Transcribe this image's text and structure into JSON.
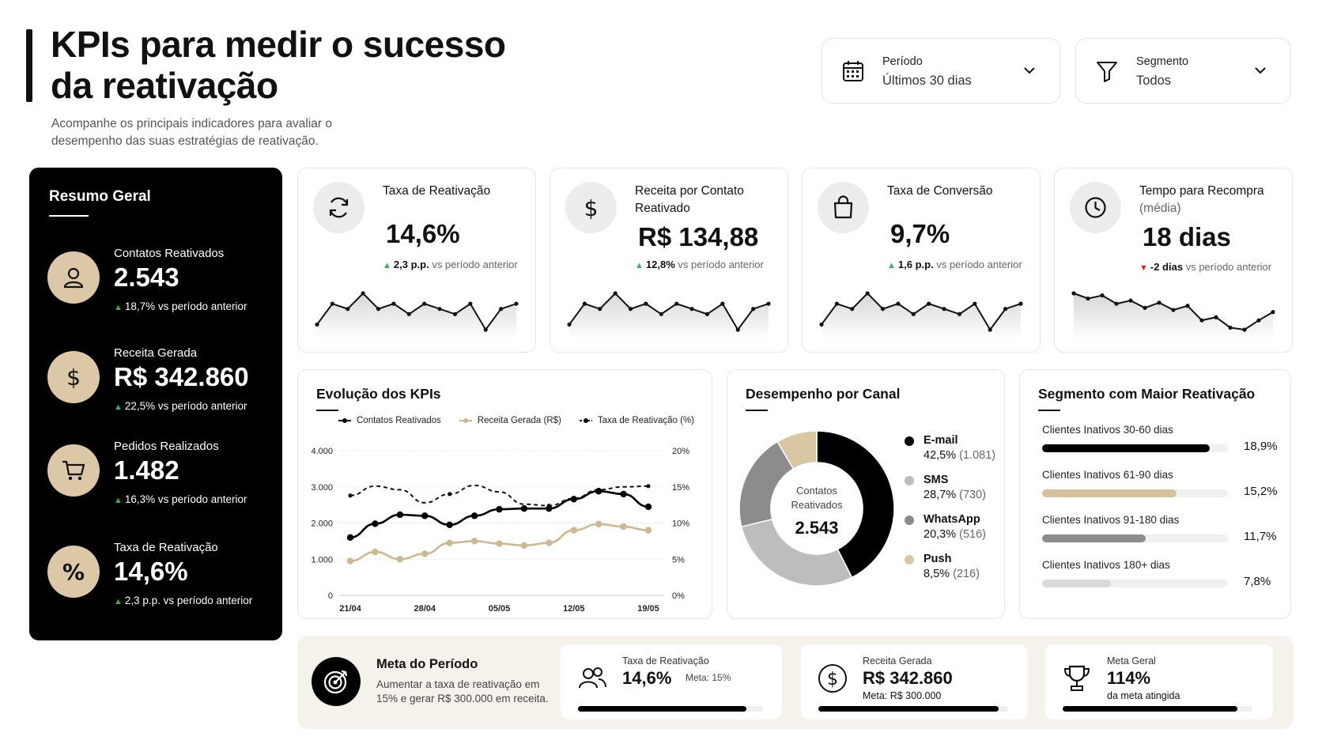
{
  "header": {
    "title": "KPIs para medir o sucesso da reativação",
    "subtitle": "Acompanhe os principais indicadores para avaliar o desempenho das suas estratégias de reativação."
  },
  "filters": {
    "period": {
      "label": "Período",
      "value": "Últimos 30 dias",
      "icon": "calendar-icon"
    },
    "segment": {
      "label": "Segmento",
      "value": "Todos",
      "icon": "filter-icon"
    }
  },
  "summary": {
    "title": "Resumo Geral",
    "items": [
      {
        "label": "Contatos Reativados",
        "value": "2.543",
        "delta": "18,7% vs período anterior",
        "icon": "user-icon"
      },
      {
        "label": "Receita Gerada",
        "value": "R$ 342.860",
        "delta": "22,5% vs período anterior",
        "icon": "dollar-icon"
      },
      {
        "label": "Pedidos Realizados",
        "value": "1.482",
        "delta": "16,3% vs período anterior",
        "icon": "cart-icon"
      },
      {
        "label": "Taxa de Reativação",
        "value": "14,6%",
        "delta": "2,3 p.p. vs período anterior",
        "icon": "percent-icon"
      }
    ]
  },
  "kpis": [
    {
      "title": "Taxa de Reativação",
      "subtitle": "",
      "value": "14,6%",
      "delta_value": "2,3 p.p.",
      "delta_text": "vs período anterior",
      "trend": "up",
      "icon": "refresh-icon",
      "spark": [
        2,
        6,
        5,
        8,
        5,
        6,
        4,
        6,
        5,
        4,
        6,
        1,
        5,
        6
      ]
    },
    {
      "title": "Receita por Contato Reativado",
      "subtitle": "",
      "value": "R$ 134,88",
      "delta_value": "12,8%",
      "delta_text": "vs período anterior",
      "trend": "up",
      "icon": "dollar-icon",
      "spark": [
        2,
        6,
        5,
        8,
        5,
        6,
        4,
        6,
        5,
        4,
        6,
        1,
        5,
        6
      ]
    },
    {
      "title": "Taxa de Conversão",
      "subtitle": "",
      "value": "9,7%",
      "delta_value": "1,6 p.p.",
      "delta_text": "vs período anterior",
      "trend": "up",
      "icon": "bag-icon",
      "spark": [
        2,
        6,
        5,
        8,
        5,
        6,
        4,
        6,
        5,
        4,
        6,
        1,
        5,
        6
      ]
    },
    {
      "title": "Tempo para Recompra",
      "subtitle": "(média)",
      "value": "18 dias",
      "delta_value": "-2 dias",
      "delta_text": "vs período anterior",
      "trend": "down",
      "icon": "clock-icon",
      "spark": [
        6,
        5.5,
        5.8,
        5,
        5.3,
        4.6,
        5.1,
        4.4,
        4.8,
        3.4,
        3.7,
        2.7,
        2.5,
        3.4,
        4.2
      ]
    }
  ],
  "evolution": {
    "title": "Evolução dos KPIs",
    "chart_data": {
      "type": "line",
      "x": [
        "21/04",
        "24/04",
        "26/04",
        "28/04",
        "02/05",
        "05/05",
        "07/05",
        "09/05",
        "12/05",
        "15/05",
        "18/05",
        "19/05",
        "20/05"
      ],
      "xticks": [
        "21/04",
        "28/04",
        "05/05",
        "12/05",
        "19/05"
      ],
      "y_left_ticks": [
        "0",
        "1.000",
        "2.000",
        "3.000",
        "4.000"
      ],
      "y_right_ticks": [
        "0%",
        "5%",
        "10%",
        "15%",
        "20%"
      ],
      "ylim_left": [
        0,
        4000
      ],
      "ylim_right": [
        0,
        20
      ],
      "series": [
        {
          "name": "Contatos Reativados",
          "axis": "left",
          "color": "#000000",
          "style": "solid",
          "values": [
            1600,
            1980,
            2230,
            2200,
            1950,
            2200,
            2380,
            2400,
            2400,
            2660,
            2880,
            2800,
            2450
          ]
        },
        {
          "name": "Receita Gerada (R$)",
          "axis": "left",
          "color": "#cdb890",
          "style": "solid",
          "values": [
            950,
            1200,
            1000,
            1150,
            1450,
            1500,
            1430,
            1380,
            1450,
            1800,
            1970,
            1900,
            1800
          ]
        },
        {
          "name": "Taxa de Reativação (%)",
          "axis": "right",
          "color": "#111111",
          "style": "dashed",
          "values": [
            13.8,
            15.1,
            14.6,
            12.8,
            14.0,
            15.2,
            14.3,
            12.6,
            12.4,
            13.4,
            14.6,
            15.0,
            15.1
          ]
        }
      ]
    }
  },
  "channels": {
    "title": "Desempenho por Canal",
    "center_label": "Contatos Reativados",
    "center_value": "2.543",
    "chart_data": {
      "type": "pie",
      "labels": [
        "E-mail",
        "SMS",
        "WhatsApp",
        "Push"
      ],
      "values": [
        42.5,
        28.7,
        20.3,
        8.5
      ],
      "counts": [
        "(1.081)",
        "(730)",
        "(516)",
        "(216)"
      ],
      "display": [
        "42,5%",
        "28,7%",
        "20,3%",
        "8,5%"
      ],
      "colors": [
        "#000000",
        "#bdbdbd",
        "#8c8c8c",
        "#d9c7a3"
      ]
    }
  },
  "segments": {
    "title": "Segmento com Maior Reativação",
    "chart_data": {
      "type": "bar",
      "categories": [
        "Clientes Inativos 30-60 dias",
        "Clientes Inativos 61-90 dias",
        "Clientes Inativos 91-180 dias",
        "Clientes Inativos 180+ dias"
      ],
      "values": [
        18.9,
        15.2,
        11.7,
        7.8
      ],
      "labels": [
        "18,9%",
        "15,2%",
        "11,7%",
        "7,8%"
      ],
      "colors": [
        "#000000",
        "#d5c19b",
        "#8c8c8c",
        "#d9d9d9"
      ],
      "xlim": [
        0,
        21
      ]
    }
  },
  "meta": {
    "title": "Meta do Período",
    "description": "Aumentar a taxa de reativação em 15% e gerar R$ 300.000 em receita.",
    "cards": [
      {
        "label": "Taxa de Reativação",
        "value": "14,6%",
        "note": "Meta: 15%",
        "progress": 0.91,
        "icon": "users-icon"
      },
      {
        "label": "Receita Gerada",
        "value": "R$ 342.860",
        "note": "Meta: R$ 300.000",
        "progress": 0.95,
        "icon": "dollar-icon"
      },
      {
        "label": "Meta Geral",
        "value": "114%",
        "note": "da meta atingida",
        "progress": 0.92,
        "icon": "trophy-icon"
      }
    ]
  }
}
